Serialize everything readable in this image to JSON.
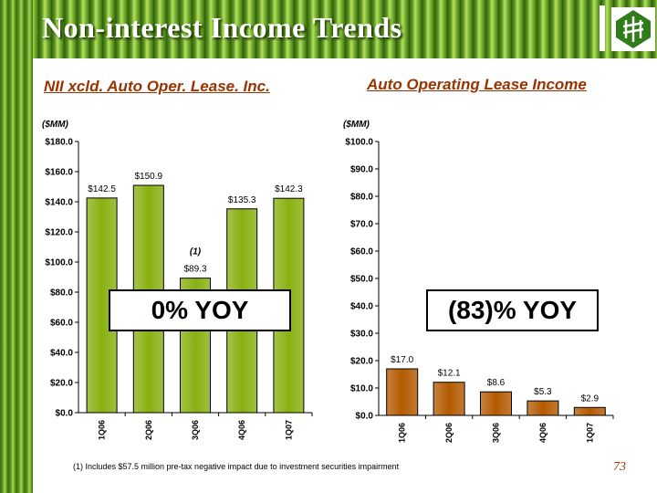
{
  "header": {
    "title": "Non-interest Income Trends"
  },
  "footnote": "(1)  Includes $57.5 million pre-tax negative impact due to investment securities impairment",
  "page_number": "73",
  "colors": {
    "bar_left": "#88b010",
    "bar_right": "#b35a00",
    "title_accent": "#993300"
  },
  "chart_data": [
    {
      "type": "bar",
      "title": "NII xcld. Auto Oper. Lease. Inc.",
      "ylabel": "($MM)",
      "categories": [
        "1Q06",
        "2Q06",
        "3Q06",
        "4Q06",
        "1Q07"
      ],
      "values": [
        142.5,
        150.9,
        89.3,
        135.3,
        142.3
      ],
      "value_labels": [
        "$142.5",
        "$150.9",
        "$89.3",
        "$135.3",
        "$142.3"
      ],
      "yticks": [
        "$0.0",
        "$20.0",
        "$40.0",
        "$60.0",
        "$80.0",
        "$100.0",
        "$120.0",
        "$140.0",
        "$160.0",
        "$180.0"
      ],
      "ylim": [
        0,
        180
      ],
      "annotation": {
        "category": "3Q06",
        "text": "(1)"
      },
      "callout": "0% YOY"
    },
    {
      "type": "bar",
      "title": "Auto Operating Lease Income",
      "ylabel": "($MM)",
      "categories": [
        "1Q06",
        "2Q06",
        "3Q06",
        "4Q06",
        "1Q07"
      ],
      "values": [
        17.0,
        12.1,
        8.6,
        5.3,
        2.9
      ],
      "value_labels": [
        "$17.0",
        "$12.1",
        "$8.6",
        "$5.3",
        "$2.9"
      ],
      "yticks": [
        "$0.0",
        "$10.0",
        "$20.0",
        "$30.0",
        "$40.0",
        "$50.0",
        "$60.0",
        "$70.0",
        "$80.0",
        "$90.0",
        "$100.0"
      ],
      "ylim": [
        0,
        100
      ],
      "callout": "(83)% YOY"
    }
  ]
}
